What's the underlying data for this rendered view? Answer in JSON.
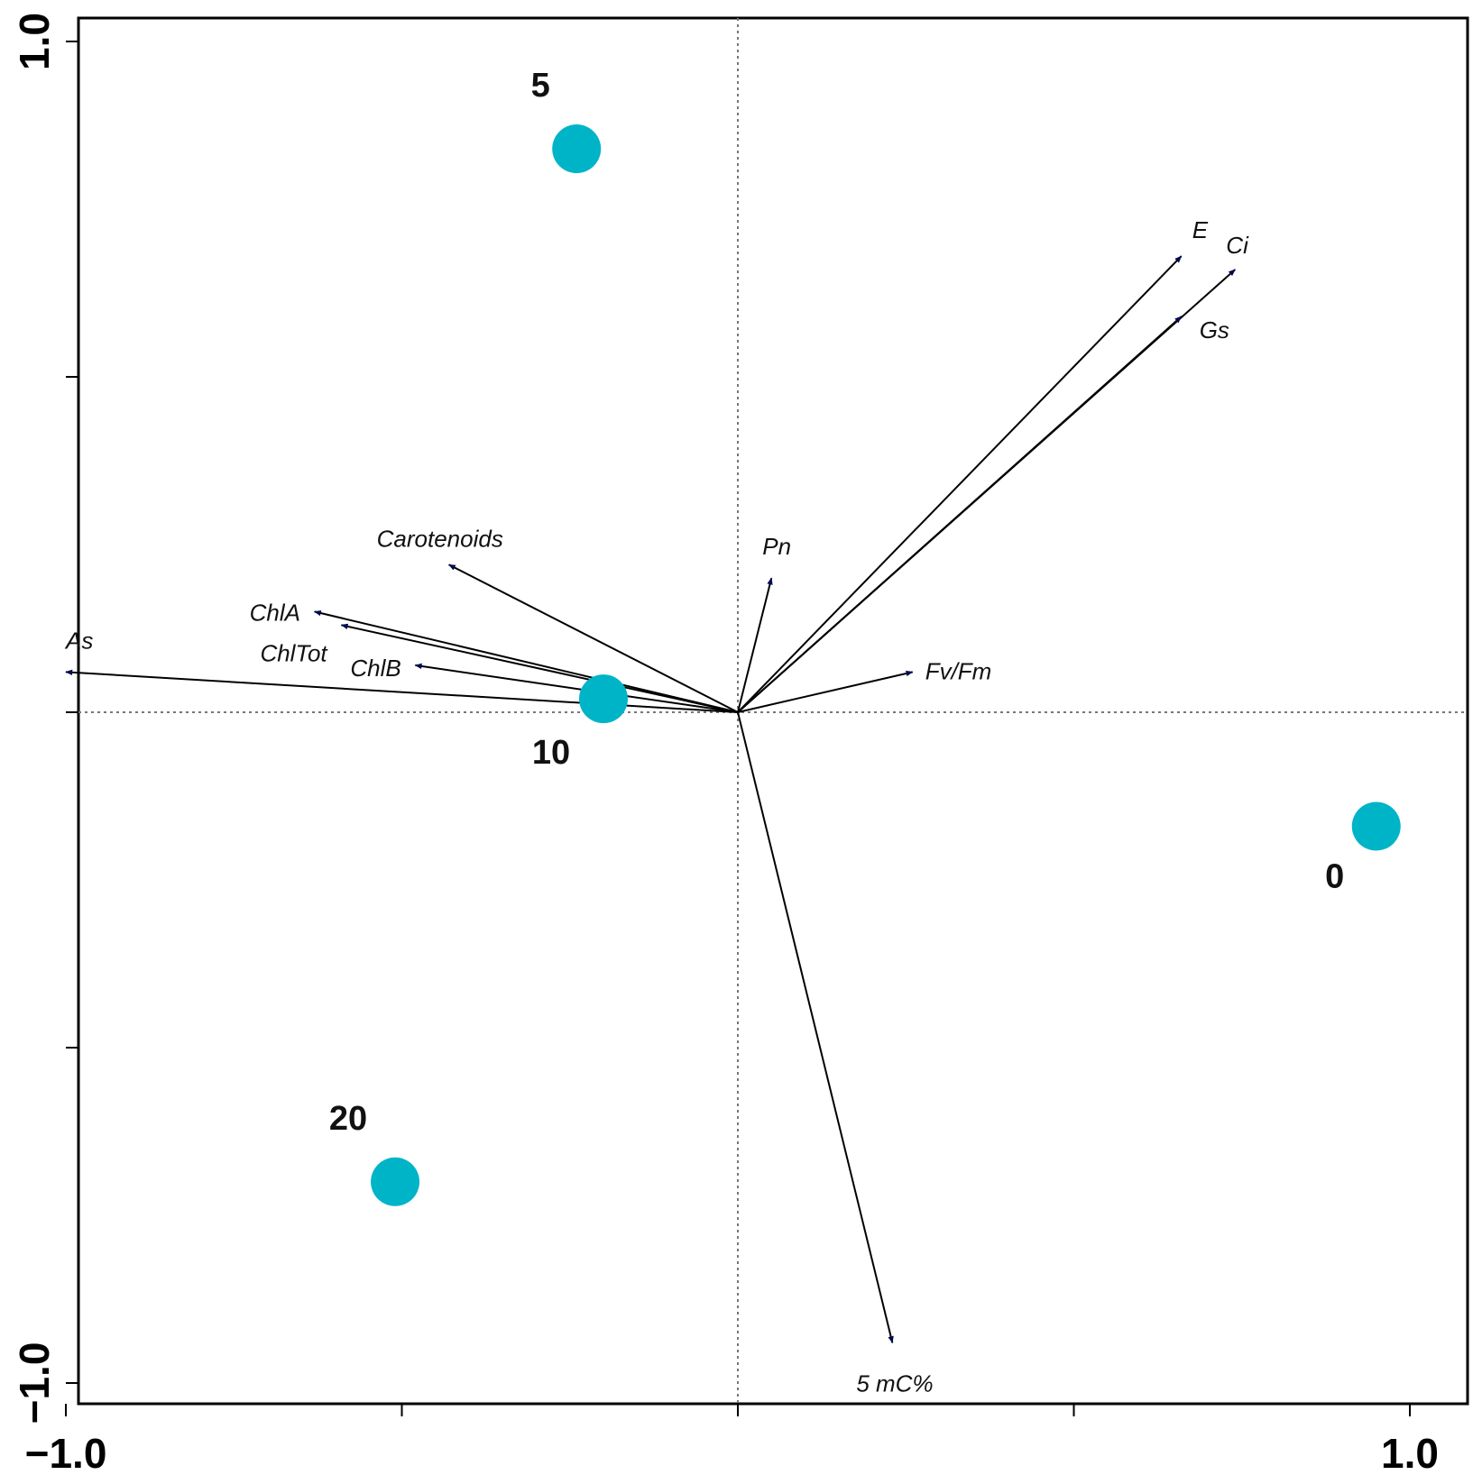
{
  "chart_data": {
    "type": "scatter",
    "subtype": "biplot",
    "xlim": [
      -1.05,
      1.05
    ],
    "ylim": [
      -1.05,
      1.05
    ],
    "x_tick_labels": [
      {
        "value": -1.0,
        "label": "−1.0"
      },
      {
        "value": 1.0,
        "label": "1.0"
      }
    ],
    "y_tick_labels": [
      {
        "value": 1.0,
        "label": "1.0"
      },
      {
        "value": -1.0,
        "label": "−1.0"
      }
    ],
    "x_ticks": [
      -1.0,
      -0.5,
      0.0,
      0.5,
      1.0
    ],
    "y_ticks": [
      -1.0,
      -0.5,
      0.0,
      0.5,
      1.0
    ],
    "reference_lines": {
      "x": 0,
      "y": 0,
      "style": "dotted"
    },
    "arrow_color": "#000b4f",
    "point_color": "#00b4c8",
    "vectors": [
      {
        "label": "E",
        "x": 0.66,
        "y": 0.68
      },
      {
        "label": "Ci",
        "x": 0.74,
        "y": 0.66
      },
      {
        "label": "Gs",
        "x": 0.66,
        "y": 0.59
      },
      {
        "label": "Pn",
        "x": 0.05,
        "y": 0.2
      },
      {
        "label": "Fv/Fm",
        "x": 0.26,
        "y": 0.06
      },
      {
        "label": "Carotenoids",
        "x": -0.43,
        "y": 0.22
      },
      {
        "label": "ChlA",
        "x": -0.63,
        "y": 0.15
      },
      {
        "label": "ChlTot",
        "x": -0.59,
        "y": 0.13
      },
      {
        "label": "ChlB",
        "x": -0.48,
        "y": 0.07
      },
      {
        "label": "As",
        "x": -1.0,
        "y": 0.06
      },
      {
        "label": "5 mC%",
        "x": 0.23,
        "y": -0.94
      }
    ],
    "points": [
      {
        "label": "5",
        "x": -0.24,
        "y": 0.84
      },
      {
        "label": "10",
        "x": -0.2,
        "y": 0.02
      },
      {
        "label": "0",
        "x": 0.95,
        "y": -0.17
      },
      {
        "label": "20",
        "x": -0.51,
        "y": -0.7
      }
    ]
  }
}
